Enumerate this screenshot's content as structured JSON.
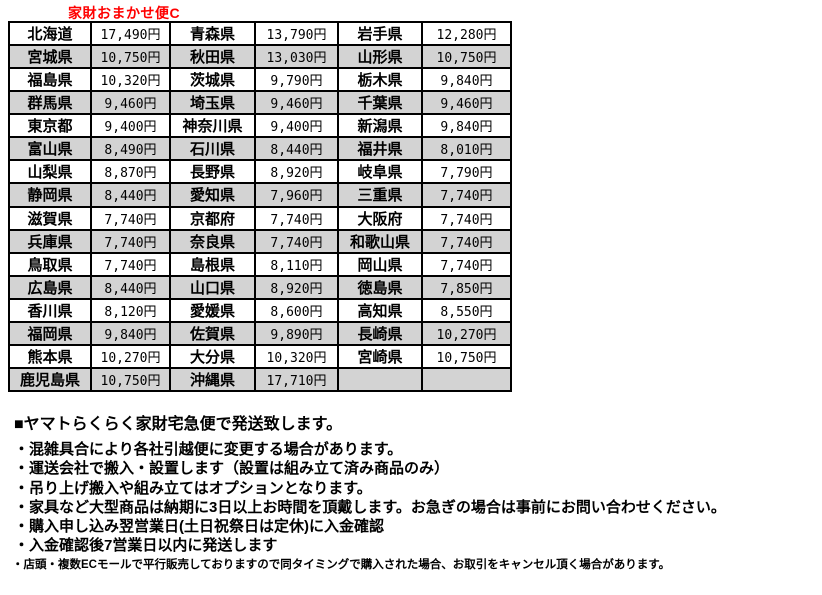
{
  "title": "家財おまかせ便C",
  "colors": {
    "title_red": "#ff0000",
    "alt_row_gray": "#d3d3d3",
    "border_black": "#000000"
  },
  "table": {
    "rows": [
      {
        "cells": [
          "北海道",
          "17,490円",
          "青森県",
          "13,790円",
          "岩手県",
          "12,280円"
        ]
      },
      {
        "cells": [
          "宮城県",
          "10,750円",
          "秋田県",
          "13,030円",
          "山形県",
          "10,750円"
        ]
      },
      {
        "cells": [
          "福島県",
          "10,320円",
          "茨城県",
          "9,790円",
          "栃木県",
          "9,840円"
        ]
      },
      {
        "cells": [
          "群馬県",
          "9,460円",
          "埼玉県",
          "9,460円",
          "千葉県",
          "9,460円"
        ]
      },
      {
        "cells": [
          "東京都",
          "9,400円",
          "神奈川県",
          "9,400円",
          "新潟県",
          "9,840円"
        ]
      },
      {
        "cells": [
          "富山県",
          "8,490円",
          "石川県",
          "8,440円",
          "福井県",
          "8,010円"
        ]
      },
      {
        "cells": [
          "山梨県",
          "8,870円",
          "長野県",
          "8,920円",
          "岐阜県",
          "7,790円"
        ]
      },
      {
        "cells": [
          "静岡県",
          "8,440円",
          "愛知県",
          "7,960円",
          "三重県",
          "7,740円"
        ]
      },
      {
        "cells": [
          "滋賀県",
          "7,740円",
          "京都府",
          "7,740円",
          "大阪府",
          "7,740円"
        ]
      },
      {
        "cells": [
          "兵庫県",
          "7,740円",
          "奈良県",
          "7,740円",
          "和歌山県",
          "7,740円"
        ]
      },
      {
        "cells": [
          "鳥取県",
          "7,740円",
          "島根県",
          "8,110円",
          "岡山県",
          "7,740円"
        ]
      },
      {
        "cells": [
          "広島県",
          "8,440円",
          "山口県",
          "8,920円",
          "徳島県",
          "7,850円"
        ]
      },
      {
        "cells": [
          "香川県",
          "8,120円",
          "愛媛県",
          "8,600円",
          "高知県",
          "8,550円"
        ]
      },
      {
        "cells": [
          "福岡県",
          "9,840円",
          "佐賀県",
          "9,890円",
          "長崎県",
          "10,270円"
        ]
      },
      {
        "cells": [
          "熊本県",
          "10,270円",
          "大分県",
          "10,320円",
          "宮崎県",
          "10,750円"
        ]
      },
      {
        "cells": [
          "鹿児島県",
          "10,750円",
          "沖縄県",
          "17,710円",
          "",
          ""
        ]
      }
    ]
  },
  "notes": {
    "heading": "■ヤマトらくらく家財宅急便で発送致します。",
    "bullets": [
      "・混雑具合により各社引越便に変更する場合があります。",
      "・運送会社で搬入・設置します（設置は組み立て済み商品のみ）",
      "・吊り上げ搬入や組み立てはオプションとなります。",
      "・家具など大型商品は納期に3日以上お時間を頂戴します。お急ぎの場合は事前にお問い合わせください。",
      "・購入申し込み翌営業日(土日祝祭日は定休)に入金確認",
      "・入金確認後7営業日以内に発送します"
    ],
    "small_note": "・店頭・複数ECモールで平行販売しておりますので同タイミングで購入された場合、お取引をキャンセル頂く場合があります。"
  }
}
